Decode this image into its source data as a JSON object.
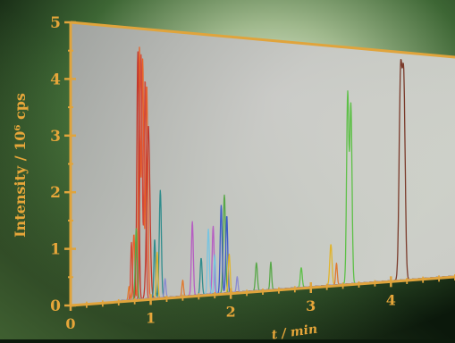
{
  "chart_data": {
    "type": "line",
    "xlabel": "t / min",
    "ylabel": "Intensity / 10⁶ cps",
    "xlim": [
      0,
      4.8
    ],
    "ylim": [
      0,
      5
    ],
    "x_ticks": [
      "0",
      "1",
      "2",
      "3",
      "4"
    ],
    "y_ticks": [
      "0",
      "1",
      "2",
      "3",
      "4",
      "5"
    ],
    "grid": false,
    "series": [
      {
        "color": "#e8632a",
        "peaks": [
          [
            0.86,
            4.62,
            0.012
          ],
          [
            0.9,
            4.4,
            0.012
          ],
          [
            0.95,
            3.95,
            0.014
          ],
          [
            0.79,
            1.2,
            0.012
          ]
        ]
      },
      {
        "color": "#d24a3a",
        "peaks": [
          [
            0.88,
            4.5,
            0.014
          ],
          [
            0.93,
            4.05,
            0.012
          ],
          [
            0.76,
            1.05,
            0.01
          ]
        ]
      },
      {
        "color": "#c2382c",
        "peaks": [
          [
            0.84,
            4.55,
            0.013
          ],
          [
            0.97,
            3.2,
            0.02
          ]
        ]
      },
      {
        "color": "#58a848",
        "peaks": [
          [
            0.82,
            1.3,
            0.012
          ],
          [
            1.92,
            1.9,
            0.014
          ],
          [
            2.32,
            0.55,
            0.012
          ],
          [
            2.5,
            0.55,
            0.01
          ]
        ]
      },
      {
        "color": "#2f8c8c",
        "peaks": [
          [
            1.12,
            2.0,
            0.013
          ],
          [
            1.05,
            1.1,
            0.01
          ],
          [
            1.63,
            0.7,
            0.012
          ]
        ]
      },
      {
        "color": "#b65ec2",
        "peaks": [
          [
            1.52,
            1.4,
            0.012
          ],
          [
            1.78,
            1.3,
            0.012
          ]
        ]
      },
      {
        "color": "#3e5cc8",
        "peaks": [
          [
            1.88,
            1.7,
            0.012
          ],
          [
            1.95,
            1.5,
            0.012
          ]
        ]
      },
      {
        "color": "#78c4e0",
        "peaks": [
          [
            1.72,
            1.25,
            0.012
          ],
          [
            1.8,
            0.75,
            0.01
          ]
        ]
      },
      {
        "color": "#e0b42c",
        "peaks": [
          [
            1.08,
            0.85,
            0.01
          ],
          [
            1.98,
            0.75,
            0.012
          ],
          [
            3.25,
            0.85,
            0.014
          ]
        ]
      },
      {
        "color": "#5ec048",
        "peaks": [
          [
            3.46,
            4.0,
            0.014
          ],
          [
            3.5,
            3.75,
            0.014
          ],
          [
            2.88,
            0.4,
            0.012
          ]
        ]
      },
      {
        "color": "#7a3a2a",
        "peaks": [
          [
            4.12,
            4.35,
            0.018
          ],
          [
            4.16,
            4.25,
            0.018
          ]
        ]
      },
      {
        "color": "#e07a30",
        "peaks": [
          [
            0.73,
            0.25,
            0.01
          ],
          [
            1.4,
            0.3,
            0.01
          ],
          [
            3.32,
            0.45,
            0.01
          ]
        ]
      },
      {
        "color": "#8a8ad0",
        "peaks": [
          [
            1.18,
            0.35,
            0.01
          ],
          [
            2.08,
            0.3,
            0.01
          ]
        ]
      }
    ]
  }
}
